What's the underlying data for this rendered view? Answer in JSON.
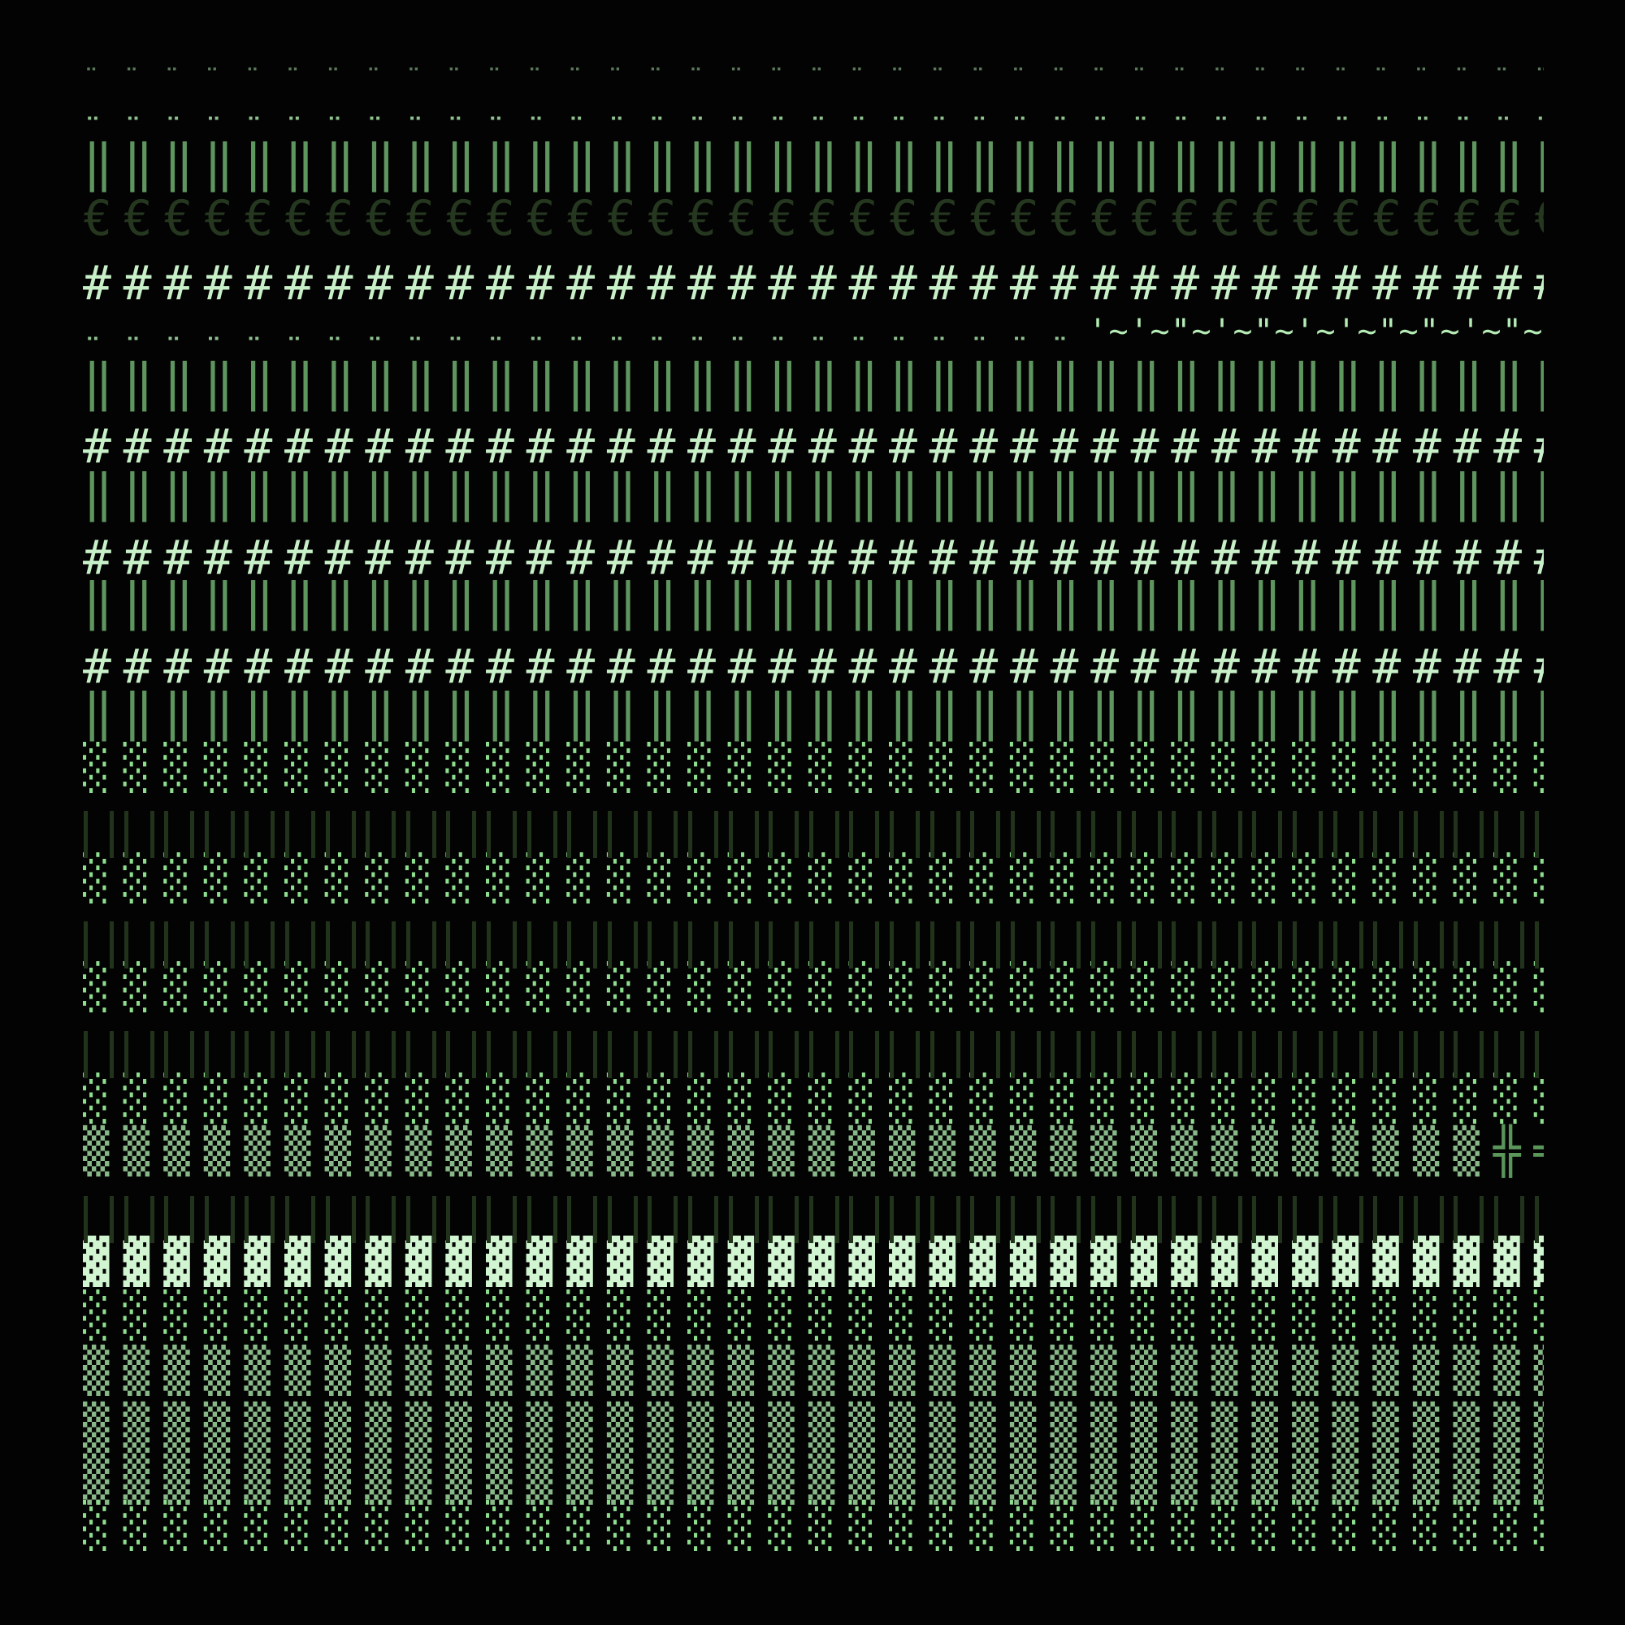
{
  "colors": {
    "background": "#030303",
    "diaeresis_faint": "#5c7a5c",
    "diaeresis": "#8fc08f",
    "double_bar": "#5f955f",
    "eye": "#25381f",
    "hash": "#c8f0c8",
    "tilde": "#b5ecb5",
    "light_shade": "#8fde8f",
    "dark_bars": "#22331c",
    "medium_shade": "#88b888",
    "dark_shade": "#d0f5d0",
    "cross": "#5a955a"
  },
  "rows": [
    {
      "text": "¨¨¨¨¨¨¨¨¨¨¨¨¨¨¨¨¨¨¨¨¨¨¨¨¨¨¨¨¨¨¨¨¨¨¨¨¨",
      "color": "diaeresis_faint"
    },
    {
      "text": "¨¨¨¨¨¨¨¨¨¨¨¨¨¨¨¨¨¨¨¨¨¨¨¨¨¨¨¨¨¨¨¨¨¨¨¨¨",
      "color": "diaeresis"
    },
    {
      "text": "‖‖‖‖‖‖‖‖‖‖‖‖‖‖‖‖‖‖‖‖‖‖‖‖‖‖‖‖‖‖‖‖‖‖‖‖‖",
      "color": "double_bar"
    },
    {
      "text": "€€€€€€€€€€€€€€€€€€€€€€€€€€€€€€€€€€€€€",
      "color": "eye"
    },
    {
      "text": "#####################################",
      "color": "hash"
    },
    {
      "text": "¨¨¨¨¨¨¨¨¨¨¨¨¨¨¨¨¨¨¨¨¨¨¨¨¨",
      "color": "diaeresis"
    },
    {
      "text": "‖‖‖‖‖‖‖‖‖‖‖‖‖‖‖‖‖‖‖‖‖‖‖‖‖‖‖‖‖‖‖‖‖‖‖‖‖",
      "color": "double_bar"
    },
    {
      "text": "#####################################",
      "color": "hash"
    },
    {
      "text": "‖‖‖‖‖‖‖‖‖‖‖‖‖‖‖‖‖‖‖‖‖‖‖‖‖‖‖‖‖‖‖‖‖‖‖‖‖",
      "color": "double_bar"
    },
    {
      "text": "#####################################",
      "color": "hash"
    },
    {
      "text": "‖‖‖‖‖‖‖‖‖‖‖‖‖‖‖‖‖‖‖‖‖‖‖‖‖‖‖‖‖‖‖‖‖‖‖‖‖",
      "color": "double_bar"
    },
    {
      "text": "#####################################",
      "color": "hash"
    },
    {
      "text": "‖‖‖‖‖‖‖‖‖‖‖‖‖‖‖‖‖‖‖‖‖‖‖‖‖‖‖‖‖‖‖‖‖‖‖‖‖",
      "color": "double_bar"
    },
    {
      "text": "░░░░░░░░░░░░░░░░░░░░░░░░░░░░░░░░░░░░░",
      "color": "light_shade"
    },
    {
      "text": "░░░░░░░░░░░░░░░░░░░░░░░░░░░░░░░░░░░░░",
      "color": "light_shade"
    },
    {
      "text": "░░░░░░░░░░░░░░░░░░░░░░░░░░░░░░░░░░░░░",
      "color": "light_shade"
    },
    {
      "text": "░░░░░░░░░░░░░░░░░░░░░░░░░░░░░░░░░░░░░",
      "color": "light_shade"
    },
    {
      "text": "▒▒▒▒▒▒▒▒▒▒▒▒▒▒▒▒▒▒▒▒▒▒▒▒▒▒▒▒▒▒▒▒▒▒▒",
      "color": "medium_shade"
    },
    {
      "text": "▓▓▓▓▓▓▓▓▓▓▓▓▓▓▓▓▓▓▓▓▓▓▓▓▓▓▓▓▓▓▓▓▓▓▓▓▓",
      "color": "dark_shade"
    },
    {
      "text": "░░░░░░░░░░░░░░░░░░░░░░░░░░░░░░░░░░░░░",
      "color": "light_shade"
    },
    {
      "text": "▒▒▒▒▒▒▒▒▒▒▒▒▒▒▒▒▒▒▒▒▒▒▒▒▒▒▒▒▒▒▒▒▒▒▒▒▒",
      "color": "medium_shade"
    },
    {
      "text": "▒▒▒▒▒▒▒▒▒▒▒▒▒▒▒▒▒▒▒▒▒▒▒▒▒▒▒▒▒▒▒▒▒▒▒▒▒",
      "color": "medium_shade"
    },
    {
      "text": "▒▒▒▒▒▒▒▒▒▒▒▒▒▒▒▒▒▒▒▒▒▒▒▒▒▒▒▒▒▒▒▒▒▒▒▒▒",
      "color": "medium_shade"
    },
    {
      "text": "░░░░░░░░░░░░░░░░░░░░░░░░░░░░░░░░░░░░░",
      "color": "light_shade"
    }
  ],
  "tilde_row": {
    "text": "'~'~\"~'~\"~'~'~\"~\"~'~\"~'",
    "color": "tilde"
  },
  "cross_tail": {
    "text": "╬═",
    "color": "cross"
  }
}
